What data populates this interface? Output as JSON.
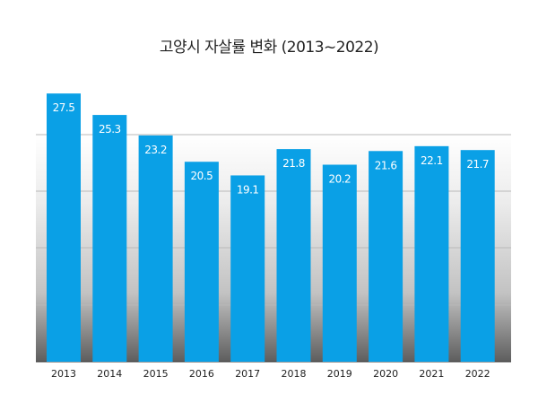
{
  "chart_data": {
    "type": "bar",
    "title": "고양시 자살률 변화 (2013~2022)",
    "categories": [
      "2013",
      "2014",
      "2015",
      "2016",
      "2017",
      "2018",
      "2019",
      "2020",
      "2021",
      "2022"
    ],
    "values": [
      27.5,
      25.3,
      23.2,
      20.5,
      19.1,
      21.8,
      20.2,
      21.6,
      22.1,
      21.7
    ],
    "data_labels": [
      "27.5",
      "25.3",
      "23.2",
      "20.5",
      "19.1",
      "21.8",
      "20.2",
      "21.6",
      "22.1",
      "21.7"
    ],
    "xlabel": "",
    "ylabel": "",
    "ylim": [
      0,
      30
    ],
    "grid": true,
    "bar_color": "#0aa0e6",
    "label_color": "#ffffff"
  }
}
